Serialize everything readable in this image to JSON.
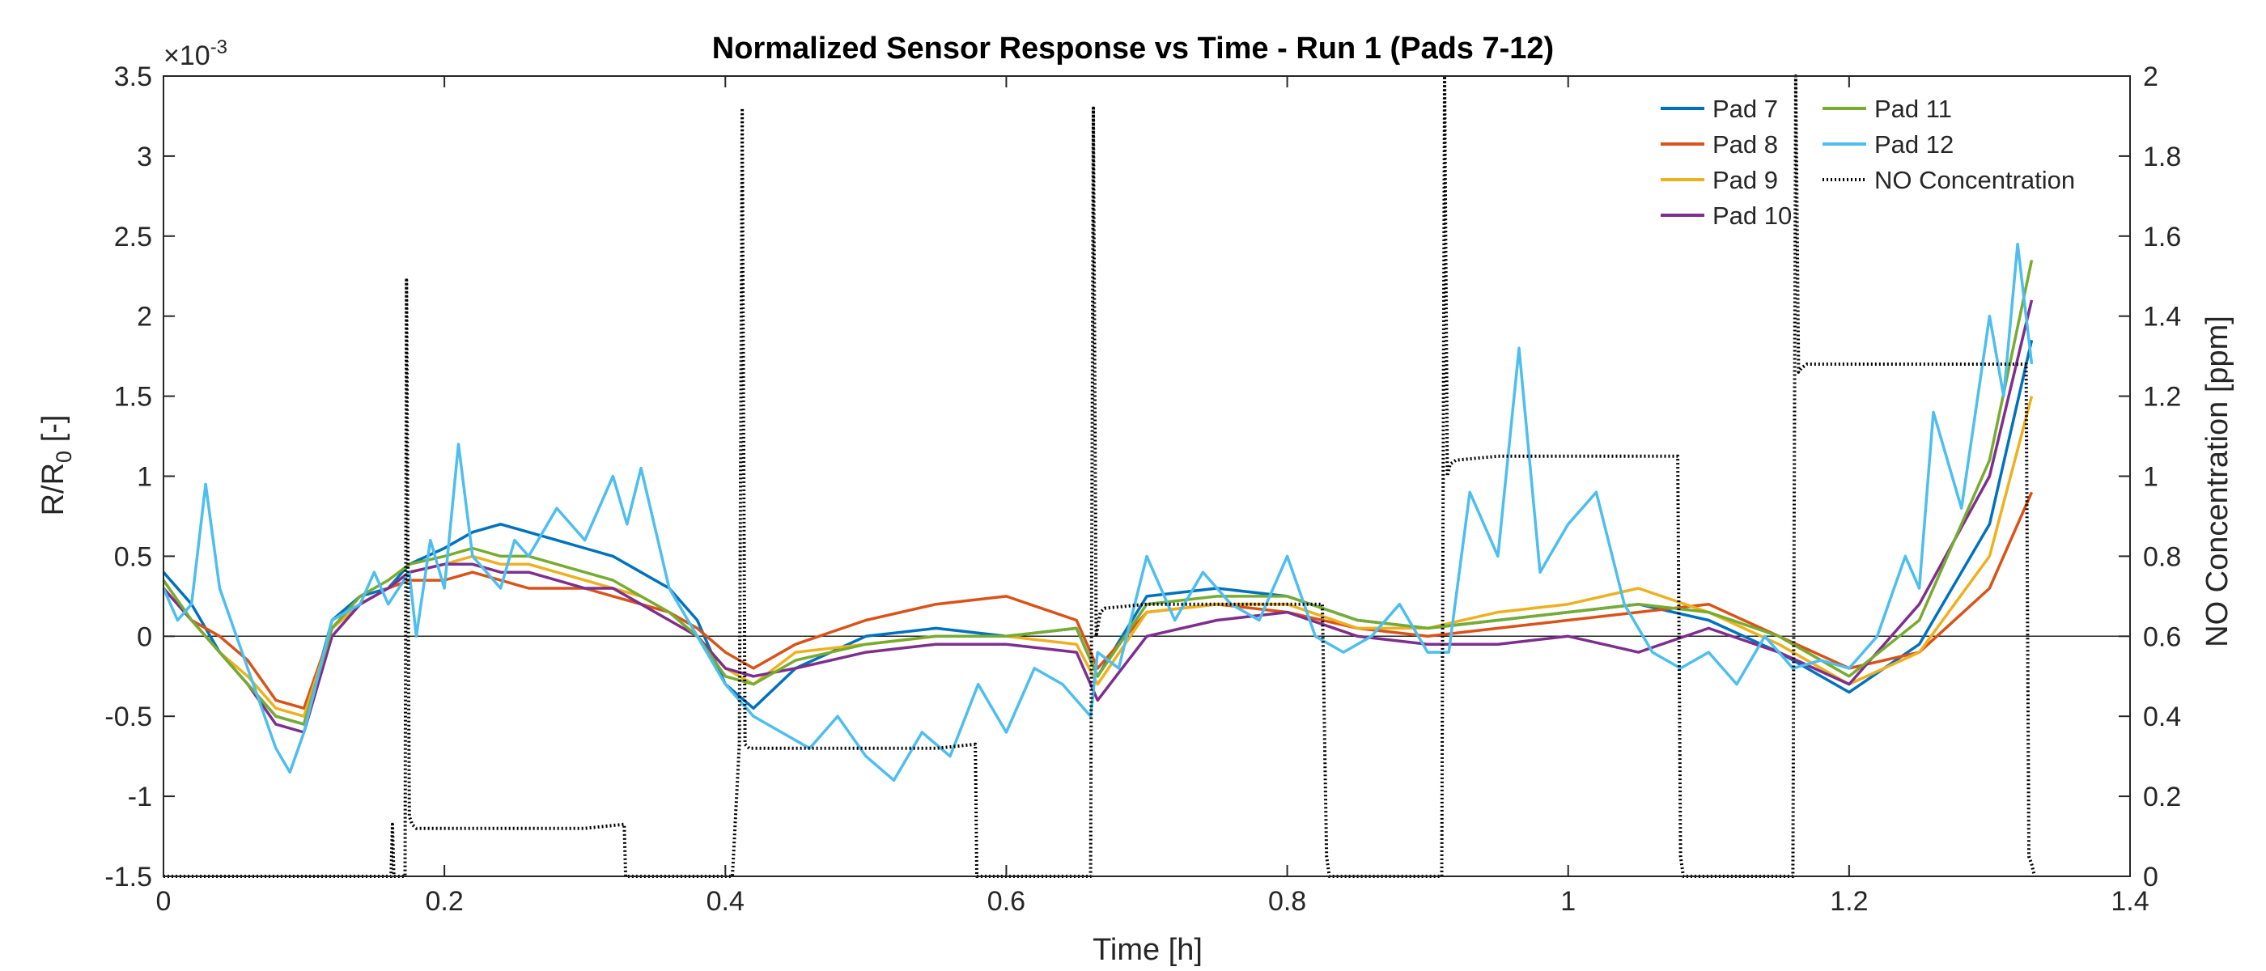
{
  "chart_data": {
    "type": "line",
    "title": "Normalized Sensor Response vs Time - Run 1 (Pads 7-12)",
    "xlabel": "Time [h]",
    "ylabel_left_main": "R/R",
    "ylabel_left_sub": "0",
    "ylabel_left_unit": " [-]",
    "ylabel_right": "NO Concentration [ppm]",
    "exponent_base": "×10",
    "exponent_power": "-3",
    "xlim": [
      0,
      1.4
    ],
    "ylim_left": [
      -1.5,
      3.5
    ],
    "ylim_right": [
      0,
      2
    ],
    "x_ticks": [
      "0",
      "0.2",
      "0.4",
      "0.6",
      "0.8",
      "1",
      "1.2",
      "1.4"
    ],
    "y_left_ticks": [
      "-1.5",
      "-1",
      "-0.5",
      "0",
      "0.5",
      "1",
      "1.5",
      "2",
      "2.5",
      "3",
      "3.5"
    ],
    "y_right_ticks": [
      "0",
      "0.2",
      "0.4",
      "0.6",
      "0.8",
      "1",
      "1.2",
      "1.4",
      "1.6",
      "1.8",
      "2"
    ],
    "grid": false,
    "legend_position": "top-right",
    "series": [
      {
        "name": "Pad 7",
        "color": "#0072BD",
        "axis": "left",
        "style": "solid",
        "x": [
          0,
          0.02,
          0.04,
          0.06,
          0.08,
          0.1,
          0.12,
          0.14,
          0.16,
          0.175,
          0.2,
          0.22,
          0.24,
          0.26,
          0.28,
          0.3,
          0.32,
          0.34,
          0.36,
          0.38,
          0.4,
          0.42,
          0.45,
          0.5,
          0.55,
          0.6,
          0.65,
          0.665,
          0.7,
          0.75,
          0.8,
          0.85,
          0.9,
          0.95,
          1.0,
          1.05,
          1.1,
          1.15,
          1.2,
          1.25,
          1.3,
          1.33
        ],
        "y": [
          0.4,
          0.2,
          -0.1,
          -0.3,
          -0.5,
          -0.55,
          0.1,
          0.25,
          0.3,
          0.45,
          0.55,
          0.65,
          0.7,
          0.65,
          0.6,
          0.55,
          0.5,
          0.4,
          0.3,
          0.1,
          -0.3,
          -0.45,
          -0.2,
          0.0,
          0.05,
          0.0,
          0.05,
          -0.25,
          0.25,
          0.3,
          0.25,
          0.1,
          0.05,
          0.1,
          0.15,
          0.2,
          0.1,
          -0.1,
          -0.35,
          -0.05,
          0.7,
          1.85
        ]
      },
      {
        "name": "Pad 8",
        "color": "#D95319",
        "axis": "left",
        "style": "solid",
        "x": [
          0,
          0.02,
          0.04,
          0.06,
          0.08,
          0.1,
          0.12,
          0.14,
          0.16,
          0.175,
          0.2,
          0.22,
          0.24,
          0.26,
          0.28,
          0.3,
          0.32,
          0.34,
          0.36,
          0.38,
          0.4,
          0.42,
          0.45,
          0.5,
          0.55,
          0.6,
          0.65,
          0.665,
          0.7,
          0.75,
          0.8,
          0.85,
          0.9,
          0.95,
          1.0,
          1.05,
          1.1,
          1.15,
          1.2,
          1.25,
          1.3,
          1.33
        ],
        "y": [
          0.3,
          0.1,
          0.0,
          -0.15,
          -0.4,
          -0.45,
          0.05,
          0.2,
          0.3,
          0.35,
          0.35,
          0.4,
          0.35,
          0.3,
          0.3,
          0.3,
          0.25,
          0.2,
          0.15,
          0.05,
          -0.1,
          -0.2,
          -0.05,
          0.1,
          0.2,
          0.25,
          0.1,
          -0.2,
          0.15,
          0.2,
          0.15,
          0.05,
          0.0,
          0.05,
          0.1,
          0.15,
          0.2,
          0.0,
          -0.2,
          -0.1,
          0.3,
          0.9
        ]
      },
      {
        "name": "Pad 9",
        "color": "#EDB120",
        "axis": "left",
        "style": "solid",
        "x": [
          0,
          0.02,
          0.04,
          0.06,
          0.08,
          0.1,
          0.12,
          0.14,
          0.16,
          0.175,
          0.2,
          0.22,
          0.24,
          0.26,
          0.28,
          0.3,
          0.32,
          0.34,
          0.36,
          0.38,
          0.4,
          0.42,
          0.45,
          0.5,
          0.55,
          0.6,
          0.65,
          0.665,
          0.7,
          0.75,
          0.8,
          0.85,
          0.9,
          0.95,
          1.0,
          1.05,
          1.1,
          1.15,
          1.2,
          1.25,
          1.3,
          1.33
        ],
        "y": [
          0.35,
          0.1,
          -0.1,
          -0.25,
          -0.45,
          -0.5,
          0.05,
          0.2,
          0.3,
          0.4,
          0.45,
          0.5,
          0.45,
          0.45,
          0.4,
          0.35,
          0.3,
          0.25,
          0.15,
          0.0,
          -0.2,
          -0.3,
          -0.1,
          -0.05,
          0.0,
          0.0,
          -0.05,
          -0.3,
          0.15,
          0.2,
          0.2,
          0.05,
          0.05,
          0.15,
          0.2,
          0.3,
          0.15,
          -0.05,
          -0.3,
          -0.1,
          0.5,
          1.5
        ]
      },
      {
        "name": "Pad 10",
        "color": "#7E2F8E",
        "axis": "left",
        "style": "solid",
        "x": [
          0,
          0.02,
          0.04,
          0.06,
          0.08,
          0.1,
          0.12,
          0.14,
          0.16,
          0.175,
          0.2,
          0.22,
          0.24,
          0.26,
          0.28,
          0.3,
          0.32,
          0.34,
          0.36,
          0.38,
          0.4,
          0.42,
          0.45,
          0.5,
          0.55,
          0.6,
          0.65,
          0.665,
          0.7,
          0.75,
          0.8,
          0.85,
          0.9,
          0.95,
          1.0,
          1.05,
          1.1,
          1.15,
          1.2,
          1.25,
          1.3,
          1.33
        ],
        "y": [
          0.3,
          0.1,
          -0.1,
          -0.3,
          -0.55,
          -0.6,
          0.0,
          0.2,
          0.3,
          0.4,
          0.45,
          0.45,
          0.4,
          0.4,
          0.35,
          0.3,
          0.3,
          0.2,
          0.1,
          0.0,
          -0.2,
          -0.25,
          -0.2,
          -0.1,
          -0.05,
          -0.05,
          -0.1,
          -0.4,
          0.0,
          0.1,
          0.15,
          0.0,
          -0.05,
          -0.05,
          0.0,
          -0.1,
          0.05,
          -0.1,
          -0.3,
          0.2,
          1.0,
          2.1
        ]
      },
      {
        "name": "Pad 11",
        "color": "#77AC30",
        "axis": "left",
        "style": "solid",
        "x": [
          0,
          0.02,
          0.04,
          0.06,
          0.08,
          0.1,
          0.12,
          0.14,
          0.16,
          0.175,
          0.2,
          0.22,
          0.24,
          0.26,
          0.28,
          0.3,
          0.32,
          0.34,
          0.36,
          0.38,
          0.4,
          0.42,
          0.45,
          0.5,
          0.55,
          0.6,
          0.65,
          0.665,
          0.7,
          0.75,
          0.8,
          0.85,
          0.9,
          0.95,
          1.0,
          1.05,
          1.1,
          1.15,
          1.2,
          1.25,
          1.3,
          1.33
        ],
        "y": [
          0.35,
          0.1,
          -0.1,
          -0.3,
          -0.5,
          -0.55,
          0.05,
          0.25,
          0.35,
          0.45,
          0.5,
          0.55,
          0.5,
          0.5,
          0.45,
          0.4,
          0.35,
          0.25,
          0.15,
          0.0,
          -0.25,
          -0.3,
          -0.15,
          -0.05,
          0.0,
          0.0,
          0.05,
          -0.25,
          0.2,
          0.25,
          0.25,
          0.1,
          0.05,
          0.1,
          0.15,
          0.2,
          0.15,
          0.0,
          -0.25,
          0.1,
          1.1,
          2.35
        ]
      },
      {
        "name": "Pad 12",
        "color": "#4DBEEE",
        "axis": "left",
        "style": "solid",
        "x": [
          0,
          0.01,
          0.02,
          0.03,
          0.04,
          0.06,
          0.08,
          0.09,
          0.1,
          0.12,
          0.14,
          0.15,
          0.16,
          0.175,
          0.18,
          0.19,
          0.2,
          0.21,
          0.22,
          0.24,
          0.25,
          0.26,
          0.28,
          0.3,
          0.32,
          0.33,
          0.34,
          0.36,
          0.38,
          0.4,
          0.41,
          0.42,
          0.44,
          0.46,
          0.48,
          0.5,
          0.52,
          0.54,
          0.56,
          0.58,
          0.6,
          0.62,
          0.64,
          0.66,
          0.665,
          0.68,
          0.7,
          0.72,
          0.74,
          0.76,
          0.78,
          0.8,
          0.82,
          0.84,
          0.86,
          0.88,
          0.9,
          0.915,
          0.93,
          0.95,
          0.965,
          0.98,
          1.0,
          1.02,
          1.04,
          1.06,
          1.08,
          1.1,
          1.12,
          1.14,
          1.16,
          1.18,
          1.2,
          1.22,
          1.24,
          1.25,
          1.26,
          1.28,
          1.3,
          1.31,
          1.32,
          1.33
        ],
        "y": [
          0.3,
          0.1,
          0.2,
          0.95,
          0.3,
          -0.2,
          -0.7,
          -0.85,
          -0.6,
          0.1,
          0.2,
          0.4,
          0.2,
          0.4,
          0.0,
          0.6,
          0.3,
          1.2,
          0.5,
          0.3,
          0.6,
          0.5,
          0.8,
          0.6,
          1.0,
          0.7,
          1.05,
          0.3,
          0.0,
          -0.3,
          -0.4,
          -0.5,
          -0.6,
          -0.7,
          -0.5,
          -0.75,
          -0.9,
          -0.6,
          -0.75,
          -0.3,
          -0.6,
          -0.2,
          -0.3,
          -0.5,
          -0.1,
          -0.2,
          0.5,
          0.1,
          0.4,
          0.2,
          0.1,
          0.5,
          0.0,
          -0.1,
          0.0,
          0.2,
          -0.1,
          -0.1,
          0.9,
          0.5,
          1.8,
          0.4,
          0.7,
          0.9,
          0.2,
          -0.1,
          -0.2,
          -0.1,
          -0.3,
          0.0,
          -0.2,
          -0.15,
          -0.2,
          0.0,
          0.5,
          0.3,
          1.4,
          0.8,
          2.0,
          1.5,
          2.45,
          1.7
        ]
      },
      {
        "name": "NO Concentration",
        "color": "#000000",
        "axis": "right",
        "style": "dotted",
        "x": [
          0,
          0.162,
          0.163,
          0.164,
          0.172,
          0.173,
          0.175,
          0.177,
          0.18,
          0.2,
          0.25,
          0.3,
          0.328,
          0.329,
          0.33,
          0.405,
          0.41,
          0.412,
          0.414,
          0.417,
          0.42,
          0.45,
          0.5,
          0.55,
          0.578,
          0.579,
          0.58,
          0.66,
          0.662,
          0.664,
          0.667,
          0.67,
          0.7,
          0.75,
          0.8,
          0.825,
          0.828,
          0.83,
          0.84,
          0.91,
          0.912,
          0.914,
          0.916,
          0.92,
          0.95,
          1.0,
          1.05,
          1.078,
          1.08,
          1.082,
          1.09,
          1.16,
          1.162,
          1.164,
          1.166,
          1.17,
          1.2,
          1.25,
          1.3,
          1.326,
          1.328,
          1.33,
          1.332
        ],
        "y": [
          0,
          0,
          0.13,
          0,
          0,
          1.49,
          0.15,
          0.13,
          0.12,
          0.12,
          0.12,
          0.12,
          0.13,
          0,
          0,
          0,
          0.33,
          1.92,
          0.33,
          0.32,
          0.32,
          0.32,
          0.32,
          0.32,
          0.33,
          0,
          0,
          0,
          1.92,
          0.6,
          0.66,
          0.67,
          0.68,
          0.68,
          0.68,
          0.68,
          0.05,
          0,
          0,
          0,
          2.0,
          1.0,
          1.03,
          1.04,
          1.05,
          1.05,
          1.05,
          1.05,
          0.05,
          0,
          0,
          0,
          2.0,
          1.26,
          1.27,
          1.28,
          1.28,
          1.28,
          1.28,
          1.28,
          0.05,
          0.03,
          0
        ]
      }
    ]
  }
}
